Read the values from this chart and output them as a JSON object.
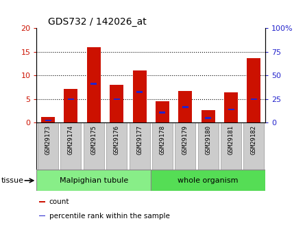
{
  "title": "GDS732 / 142026_at",
  "samples": [
    "GSM29173",
    "GSM29174",
    "GSM29175",
    "GSM29176",
    "GSM29177",
    "GSM29178",
    "GSM29179",
    "GSM29180",
    "GSM29181",
    "GSM29182"
  ],
  "counts": [
    1.2,
    7.2,
    16.0,
    8.0,
    11.1,
    4.5,
    6.7,
    2.7,
    6.5,
    13.7
  ],
  "percentile_values": [
    2.5,
    25.0,
    41.0,
    25.0,
    32.5,
    11.0,
    16.5,
    5.0,
    14.0,
    25.0
  ],
  "count_ylim": [
    0,
    20
  ],
  "percentile_ylim": [
    0,
    100
  ],
  "yticks_left": [
    0,
    5,
    10,
    15,
    20
  ],
  "yticks_right": [
    0,
    25,
    50,
    75,
    100
  ],
  "ytick_labels_right": [
    "0",
    "25",
    "50",
    "75",
    "100%"
  ],
  "bar_color": "#cc1100",
  "marker_color": "#2222cc",
  "sample_box_color": "#cccccc",
  "tissue_groups": [
    {
      "label": "Malpighian tubule",
      "start": 0,
      "end": 5,
      "color": "#88ee88"
    },
    {
      "label": "whole organism",
      "start": 5,
      "end": 10,
      "color": "#55dd55"
    }
  ],
  "tissue_label": "tissue",
  "legend_items": [
    {
      "label": "count",
      "color": "#cc1100"
    },
    {
      "label": "percentile rank within the sample",
      "color": "#2222cc"
    }
  ],
  "title_fontsize": 10,
  "tick_fontsize": 8,
  "bar_width": 0.6
}
